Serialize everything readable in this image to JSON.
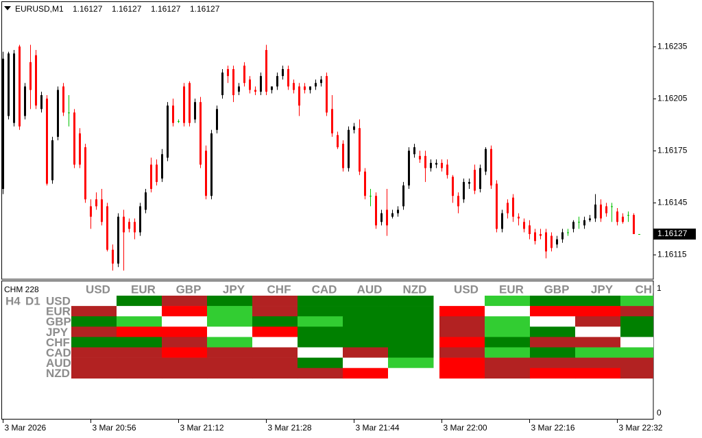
{
  "chart_data": [
    {
      "type": "candlestick",
      "symbol": "EURUSD,M1",
      "header_ohlc": [
        1.16127,
        1.16127,
        1.16127,
        1.16127
      ],
      "categories": [
        "3 Mar 2026",
        null,
        null,
        null,
        null,
        null,
        null,
        null,
        null,
        null,
        null,
        null,
        null,
        null,
        null,
        null,
        "3 Mar 20:56",
        null,
        null,
        null,
        null,
        null,
        null,
        null,
        null,
        null,
        null,
        null,
        null,
        null,
        null,
        null,
        "3 Mar 21:12",
        null,
        null,
        null,
        null,
        null,
        null,
        null,
        null,
        null,
        null,
        null,
        null,
        null,
        null,
        null,
        "3 Mar 21:28",
        null,
        null,
        null,
        null,
        null,
        null,
        null,
        null,
        null,
        null,
        null,
        null,
        null,
        null,
        null,
        "3 Mar 21:44",
        null,
        null,
        null,
        null,
        null,
        null,
        null,
        null,
        null,
        null,
        null,
        null,
        null,
        null,
        null,
        "3 Mar 22:00",
        null,
        null,
        null,
        null,
        null,
        null,
        null,
        null,
        null,
        null,
        null,
        null,
        null,
        null,
        null,
        "3 Mar 22:16",
        null,
        null,
        null,
        null,
        null,
        null,
        null,
        null,
        null,
        null,
        null,
        null,
        null,
        null,
        null,
        "3 Mar 22:32",
        null,
        null,
        null,
        null
      ],
      "open": [
        1.16153,
        1.16195,
        1.16191,
        1.16235,
        1.16195,
        1.16226,
        1.1623,
        1.16199,
        1.16205,
        1.16158,
        1.16183,
        1.16212,
        1.16197,
        1.16197,
        1.16185,
        1.16177,
        1.16143,
        1.16147,
        1.16147,
        1.16143,
        1.16118,
        1.1611,
        1.16137,
        1.16134,
        1.16134,
        1.16128,
        1.16141,
        1.16167,
        1.16167,
        1.16159,
        1.16171,
        1.16201,
        1.16192,
        1.16212,
        1.16214,
        1.16193,
        1.16203,
        1.16175,
        1.16149,
        1.16187,
        1.16207,
        1.16222,
        1.16222,
        1.16209,
        1.16224,
        1.16216,
        1.1621,
        1.16209,
        1.16233,
        1.1621,
        1.16212,
        1.16218,
        1.16222,
        1.16214,
        1.16212,
        1.16212,
        1.1621,
        1.16212,
        1.16214,
        1.16218,
        1.16199,
        1.16184,
        1.16179,
        1.16165,
        1.16187,
        1.16188,
        1.16163,
        1.16149,
        1.16149,
        1.16134,
        1.16141,
        1.16137,
        1.16139,
        1.16143,
        1.16155,
        1.16173,
        1.16172,
        1.16172,
        1.16165,
        1.16167,
        1.16168,
        1.16167,
        1.1616,
        1.16149,
        1.16147,
        1.16156,
        1.16164,
        1.16153,
        1.16163,
        1.16176,
        1.16156,
        1.1613,
        1.16145,
        1.16148,
        1.16137,
        1.16134,
        1.16132,
        1.16128,
        1.16127,
        1.16128,
        1.16126,
        1.16121,
        1.16124,
        1.16128,
        1.1613,
        1.16134,
        1.16132,
        1.16135,
        1.16136,
        1.16144,
        1.16143,
        1.16143,
        1.1614,
        1.16137,
        1.16138,
        1.16138,
        1.16127
      ],
      "high": [
        1.16232,
        1.16232,
        1.16233,
        1.16236,
        1.16214,
        1.16236,
        1.16233,
        1.16209,
        1.16207,
        1.16183,
        1.16212,
        1.16214,
        1.16207,
        1.16199,
        1.16188,
        1.16179,
        1.16147,
        1.16151,
        1.16153,
        1.16145,
        1.16121,
        1.16139,
        1.16141,
        1.16136,
        1.16136,
        1.16145,
        1.16153,
        1.16171,
        1.1617,
        1.16176,
        1.16203,
        1.16205,
        1.16193,
        1.16214,
        1.16215,
        1.16205,
        1.16206,
        1.16178,
        1.16187,
        1.16201,
        1.16222,
        1.16224,
        1.16224,
        1.16214,
        1.16226,
        1.16218,
        1.16212,
        1.1622,
        1.16236,
        1.16212,
        1.1622,
        1.16224,
        1.16224,
        1.16216,
        1.16214,
        1.16214,
        1.16212,
        1.16216,
        1.16218,
        1.1622,
        1.16207,
        1.16186,
        1.16181,
        1.16189,
        1.16191,
        1.16193,
        1.16165,
        1.16153,
        1.16151,
        1.16141,
        1.16153,
        1.16141,
        1.16143,
        1.16157,
        1.16177,
        1.16179,
        1.16175,
        1.16175,
        1.1617,
        1.1617,
        1.1617,
        1.1617,
        1.16161,
        1.16151,
        1.16159,
        1.16159,
        1.16167,
        1.16167,
        1.16177,
        1.16178,
        1.16158,
        1.16141,
        1.16147,
        1.1615,
        1.16139,
        1.16136,
        1.16135,
        1.1613,
        1.1613,
        1.1613,
        1.16128,
        1.16126,
        1.1613,
        1.1613,
        1.16135,
        1.16137,
        1.16137,
        1.16138,
        1.1615,
        1.16147,
        1.16145,
        1.16145,
        1.16142,
        1.16139,
        1.1614,
        1.16139,
        1.16127
      ],
      "low": [
        1.1615,
        1.16193,
        1.16189,
        1.16187,
        1.16193,
        1.16199,
        1.16199,
        1.16197,
        1.16155,
        1.16156,
        1.16181,
        1.16195,
        1.16189,
        1.16165,
        1.16165,
        1.16145,
        1.1613,
        1.16141,
        1.16132,
        1.16117,
        1.16106,
        1.16108,
        1.16106,
        1.16128,
        1.16124,
        1.16126,
        1.16139,
        1.16151,
        1.16155,
        1.16157,
        1.16169,
        1.16189,
        1.16191,
        1.16189,
        1.16189,
        1.16191,
        1.16165,
        1.16147,
        1.16147,
        1.16185,
        1.16205,
        1.16214,
        1.16203,
        1.16207,
        1.16212,
        1.16208,
        1.16207,
        1.16207,
        1.16207,
        1.16208,
        1.1621,
        1.16216,
        1.1621,
        1.16208,
        1.16195,
        1.16208,
        1.16208,
        1.1621,
        1.16212,
        1.16195,
        1.16183,
        1.16176,
        1.16163,
        1.16163,
        1.16185,
        1.16161,
        1.16147,
        1.16143,
        1.1613,
        1.16132,
        1.16126,
        1.16136,
        1.16137,
        1.16141,
        1.16153,
        1.16171,
        1.16168,
        1.16157,
        1.16163,
        1.16165,
        1.16163,
        1.16159,
        1.16145,
        1.16139,
        1.16145,
        1.16153,
        1.1615,
        1.16151,
        1.16161,
        1.16153,
        1.16128,
        1.16128,
        1.16136,
        1.16134,
        1.16132,
        1.16128,
        1.16124,
        1.16121,
        1.16124,
        1.16113,
        1.16117,
        1.16119,
        1.16122,
        1.16126,
        1.16128,
        1.1613,
        1.1613,
        1.16134,
        1.16134,
        1.16134,
        1.16137,
        1.16134,
        1.16132,
        1.16133,
        1.16134,
        1.16127,
        1.16127
      ],
      "close": [
        1.16228,
        1.16231,
        1.16231,
        1.16189,
        1.16212,
        1.1621,
        1.16201,
        1.16207,
        1.16156,
        1.16181,
        1.1621,
        1.16197,
        1.16197,
        1.16167,
        1.16167,
        1.16147,
        1.16137,
        1.16143,
        1.16134,
        1.16118,
        1.1611,
        1.16137,
        1.16128,
        1.1613,
        1.16128,
        1.16143,
        1.16151,
        1.16153,
        1.16157,
        1.16173,
        1.16201,
        1.16191,
        1.16192,
        1.16191,
        1.16191,
        1.16203,
        1.16167,
        1.16149,
        1.16185,
        1.16199,
        1.1622,
        1.16218,
        1.16207,
        1.16212,
        1.16214,
        1.1621,
        1.16209,
        1.16218,
        1.16209,
        1.16212,
        1.16218,
        1.16222,
        1.16212,
        1.1621,
        1.16201,
        1.1621,
        1.16212,
        1.16214,
        1.16216,
        1.16197,
        1.16185,
        1.16177,
        1.16165,
        1.16187,
        1.16189,
        1.16163,
        1.16149,
        1.16149,
        1.16132,
        1.16139,
        1.16132,
        1.16139,
        1.16141,
        1.16155,
        1.16175,
        1.16177,
        1.1617,
        1.16165,
        1.16168,
        1.16168,
        1.16165,
        1.16161,
        1.16149,
        1.16143,
        1.16157,
        1.16157,
        1.16152,
        1.16165,
        1.16176,
        1.16155,
        1.1613,
        1.16139,
        1.16139,
        1.16137,
        1.16136,
        1.1613,
        1.16127,
        1.16123,
        1.16126,
        1.16117,
        1.16119,
        1.16124,
        1.16128,
        1.16128,
        1.16134,
        1.16134,
        1.16135,
        1.16136,
        1.16144,
        1.16136,
        1.16139,
        1.16143,
        1.16134,
        1.16134,
        1.16138,
        1.16127,
        1.16127
      ],
      "bull_color": "#000000",
      "bear_color": "#FF0000",
      "doji_color": "#00C000",
      "ylim": [
        1.16101,
        1.16261
      ],
      "yticks": [
        1.16115,
        1.16145,
        1.16175,
        1.16205,
        1.16235
      ],
      "current_price": 1.16127
    },
    {
      "type": "heatmap",
      "title": "CHM 228",
      "row_labels": [
        "USD",
        "EUR",
        "GBP",
        "JPY",
        "CHF",
        "CAD",
        "AUD",
        "NZD"
      ],
      "blocks": [
        {
          "name": "H4",
          "columns": [
            "USD",
            "EUR",
            "GBP",
            "JPY",
            "CHF",
            "CAD",
            "AUD",
            "NZD"
          ],
          "cells": [
            [
              "#FFFFFF",
              "#008000",
              "#B22222",
              "#008000",
              "#B22222",
              "#008000",
              "#008000",
              "#008000"
            ],
            [
              "#B22222",
              "#FFFFFF",
              "#FF0000",
              "#32CD32",
              "#B22222",
              "#008000",
              "#008000",
              "#008000"
            ],
            [
              "#008000",
              "#32CD32",
              "#FFFFFF",
              "#32CD32",
              "#008000",
              "#32CD32",
              "#008000",
              "#008000"
            ],
            [
              "#B22222",
              "#FF0000",
              "#FF0000",
              "#FFFFFF",
              "#FF0000",
              "#008000",
              "#008000",
              "#008000"
            ],
            [
              "#008000",
              "#008000",
              "#B22222",
              "#32CD32",
              "#FFFFFF",
              "#008000",
              "#008000",
              "#008000"
            ],
            [
              "#B22222",
              "#B22222",
              "#FF0000",
              "#B22222",
              "#B22222",
              "#FFFFFF",
              "#B22222",
              "#008000"
            ],
            [
              "#B22222",
              "#B22222",
              "#B22222",
              "#B22222",
              "#B22222",
              "#008000",
              "#FFFFFF",
              "#32CD32"
            ],
            [
              "#B22222",
              "#B22222",
              "#B22222",
              "#B22222",
              "#B22222",
              "#B22222",
              "#FF0000",
              "#FFFFFF"
            ]
          ]
        },
        {
          "name": "D1",
          "columns": [
            "USD",
            "EUR",
            "GBP",
            "JPY",
            "CHF"
          ],
          "cells": [
            [
              "#FFFFFF",
              "#32CD32",
              "#008000",
              "#008000",
              "#32CD32"
            ],
            [
              "#FF0000",
              "#FFFFFF",
              "#FF0000",
              "#FF0000",
              "#B22222"
            ],
            [
              "#B22222",
              "#32CD32",
              "#FFFFFF",
              "#B22222",
              "#008000"
            ],
            [
              "#B22222",
              "#32CD32",
              "#008000",
              "#FFFFFF",
              "#008000"
            ],
            [
              "#FF0000",
              "#008000",
              "#B22222",
              "#B22222",
              "#FFFFFF"
            ],
            [
              "#B22222",
              "#32CD32",
              "#008000",
              "#32CD32",
              "#32CD32"
            ],
            [
              "#FF0000",
              "#B22222",
              "#B22222",
              "#B22222",
              "#B22222"
            ],
            [
              "#FF0000",
              "#B22222",
              "#FF0000",
              "#FF0000",
              "#B22222"
            ]
          ]
        }
      ],
      "ylim": [
        0,
        1
      ],
      "yticks": [
        0,
        1
      ]
    }
  ]
}
